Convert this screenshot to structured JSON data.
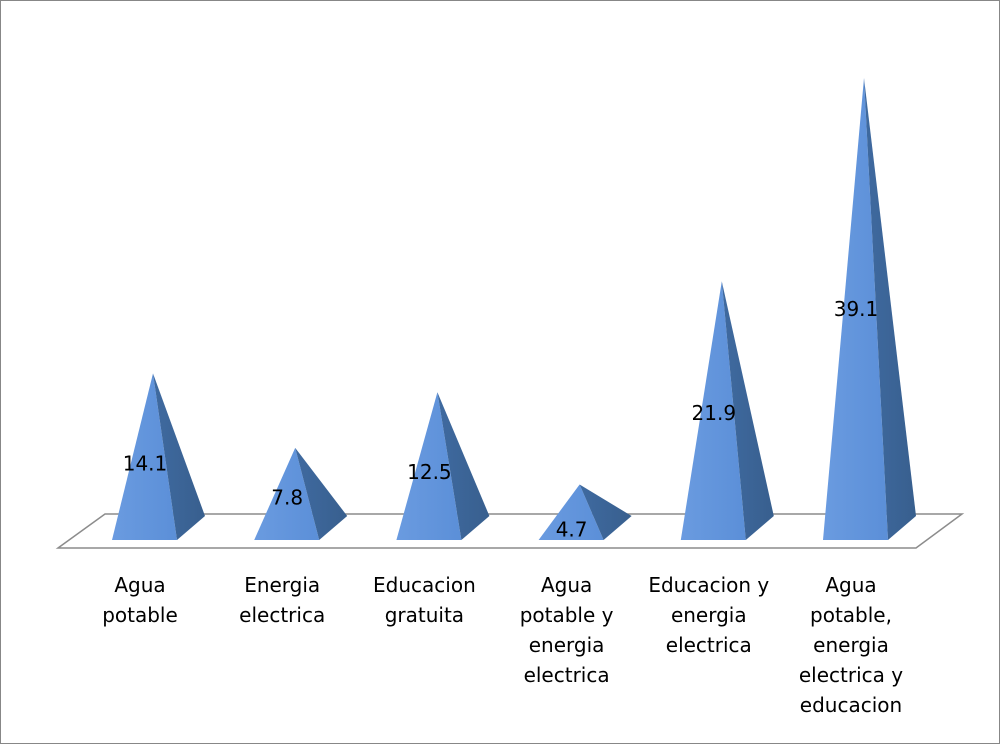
{
  "chart_data": {
    "type": "bar",
    "style": "3d-pyramid",
    "categories": [
      [
        "Agua",
        "potable"
      ],
      [
        "Energia",
        "electrica"
      ],
      [
        "Educacion",
        "gratuita"
      ],
      [
        "Agua",
        "potable y",
        "energia",
        "electrica"
      ],
      [
        "Educacion y",
        "energia",
        "electrica"
      ],
      [
        "Agua",
        "potable,",
        "energia",
        "electrica y",
        "educacion"
      ]
    ],
    "values": [
      14.1,
      7.8,
      12.5,
      4.7,
      21.9,
      39.1
    ],
    "data_labels": [
      "14.1",
      "7.8",
      "12.5",
      "4.7",
      "21.9",
      "39.1"
    ],
    "title": "",
    "xlabel": "",
    "ylabel": "",
    "ylim": [
      0,
      39.1
    ],
    "grid": false,
    "legend": "none",
    "colors": {
      "front_face": "#5b8fd8",
      "side_face": "#385f8e",
      "floor_stroke": "#8c8c8c",
      "frame_stroke": "#878787"
    }
  }
}
